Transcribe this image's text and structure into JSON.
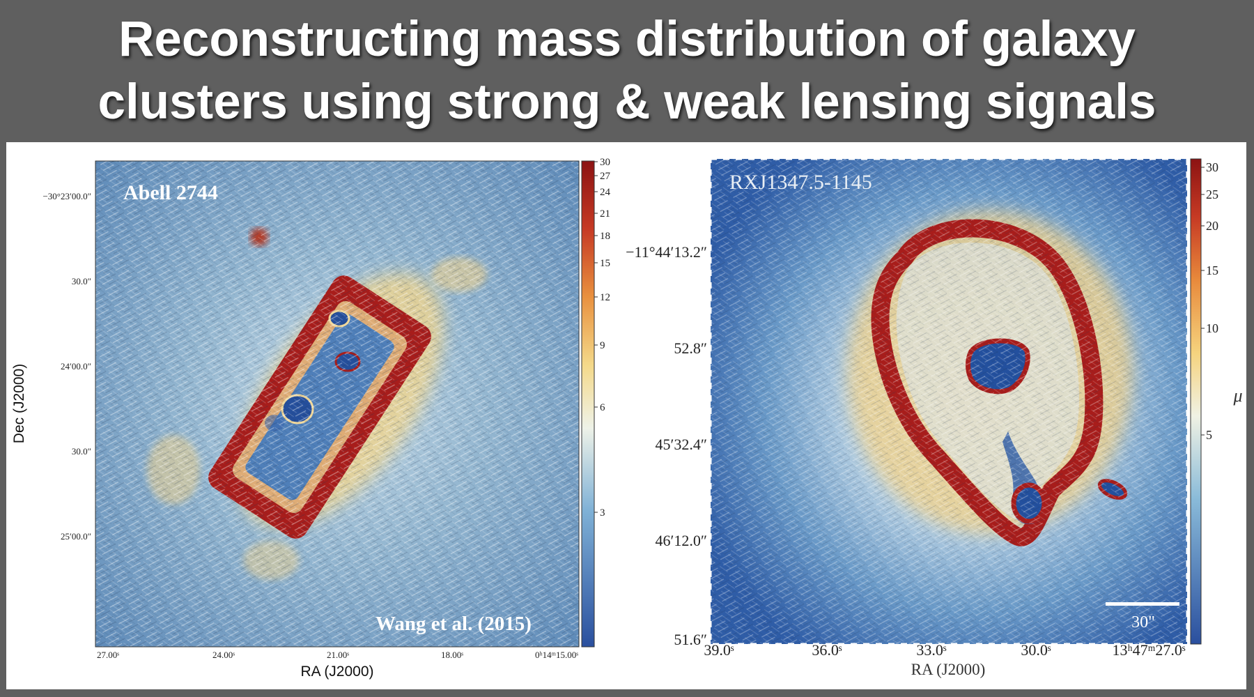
{
  "slide": {
    "title_line1": "Reconstructing mass distribution of galaxy",
    "title_line2": "clusters using strong & weak lensing signals"
  },
  "left_panel": {
    "cluster_label": "Abell 2744",
    "credit": "Wang et al. (2015)",
    "xlabel": "RA (J2000)",
    "ylabel": "Dec (J2000)",
    "x_ticks": [
      "27.00ˢ",
      "24.00ˢ",
      "21.00ˢ",
      "18.00ˢ",
      "0ʰ14ᵐ15.00ˢ"
    ],
    "y_ticks": [
      "−30°23′00.0″",
      "30.0″",
      "24′00.0″",
      "30.0″",
      "25′00.0″"
    ],
    "colorbar_ticks": [
      "30",
      "27",
      "24",
      "21",
      "18",
      "15",
      "12",
      "9",
      "6",
      "3"
    ]
  },
  "right_panel": {
    "cluster_label": "RXJ1347.5-1145",
    "xlabel": "RA (J2000)",
    "colorbar_label": "μ",
    "scalebar_label": "30\"",
    "x_ticks": [
      "39.0ˢ",
      "36.0ˢ",
      "33.0ˢ",
      "30.0ˢ",
      "13ʰ47ᵐ27.0ˢ"
    ],
    "y_ticks": [
      "−11°44′13.2″",
      "52.8″",
      "45′32.4″",
      "46′12.0″",
      "51.6″"
    ],
    "colorbar_ticks": [
      "30",
      "25",
      "20",
      "15",
      "10",
      "5"
    ]
  },
  "colors": {
    "background": "#5f5f5f",
    "map_blue": "#3f75b4",
    "map_dark_blue": "#23509e",
    "map_light": "#d8e6ee",
    "map_yellow": "#e9c870",
    "map_red": "#a8201c"
  }
}
